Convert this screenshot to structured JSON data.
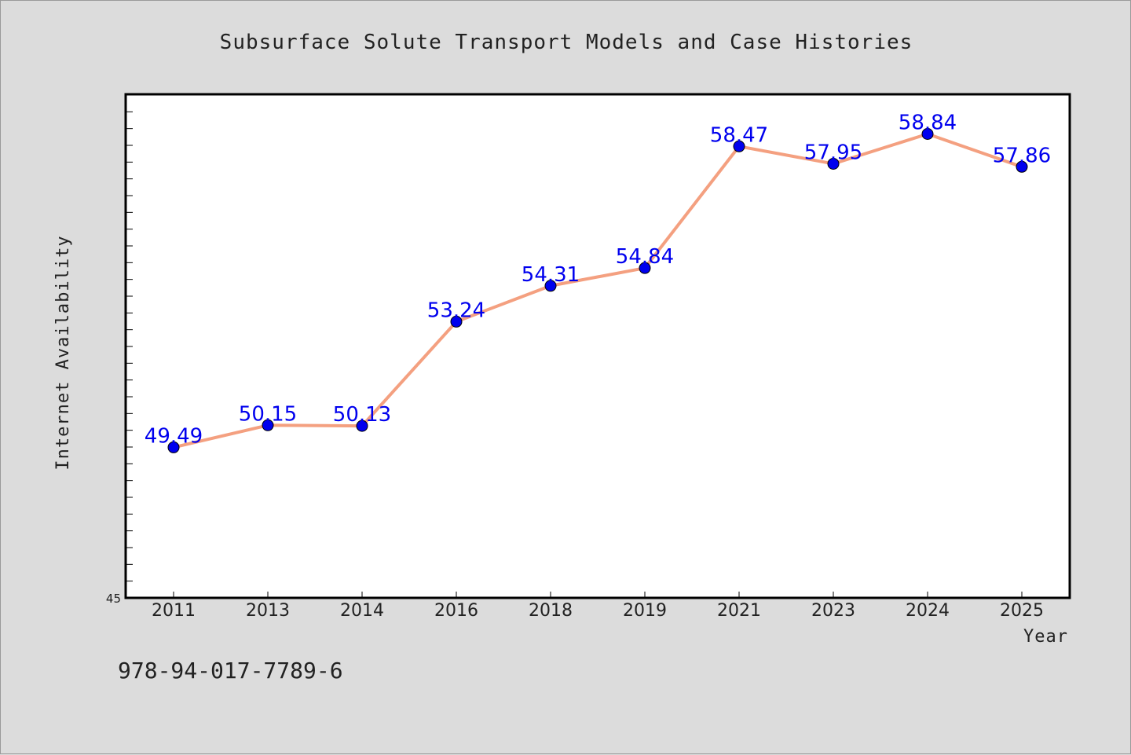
{
  "chart_data": {
    "type": "line",
    "title": "Subsurface Solute Transport Models and Case Histories",
    "xlabel": "Year",
    "ylabel": "Internet Availability",
    "categories": [
      "2011",
      "2013",
      "2014",
      "2016",
      "2018",
      "2019",
      "2021",
      "2023",
      "2024",
      "2025"
    ],
    "series": [
      {
        "values": [
          49.49,
          50.15,
          50.13,
          53.24,
          54.31,
          54.84,
          58.47,
          57.95,
          58.84,
          57.86
        ],
        "data_labels": [
          "49.49",
          "50.15",
          "50.13",
          "53.24",
          "54.31",
          "54.84",
          "58.47",
          "57.95",
          "58.84",
          "57.86"
        ],
        "line_color": "#f4a080",
        "marker_color": "#0000ee"
      }
    ],
    "ylim": [
      45,
      60
    ],
    "y_tick_label": "45",
    "grid": false,
    "legend": "none"
  },
  "footer": {
    "text": "978-94-017-7789-6"
  },
  "colors": {
    "background": "#dcdcdc",
    "plot_area": "#ffffff",
    "line": "#f4a080",
    "marker": "#0000ee",
    "data_label": "#0000ee"
  }
}
